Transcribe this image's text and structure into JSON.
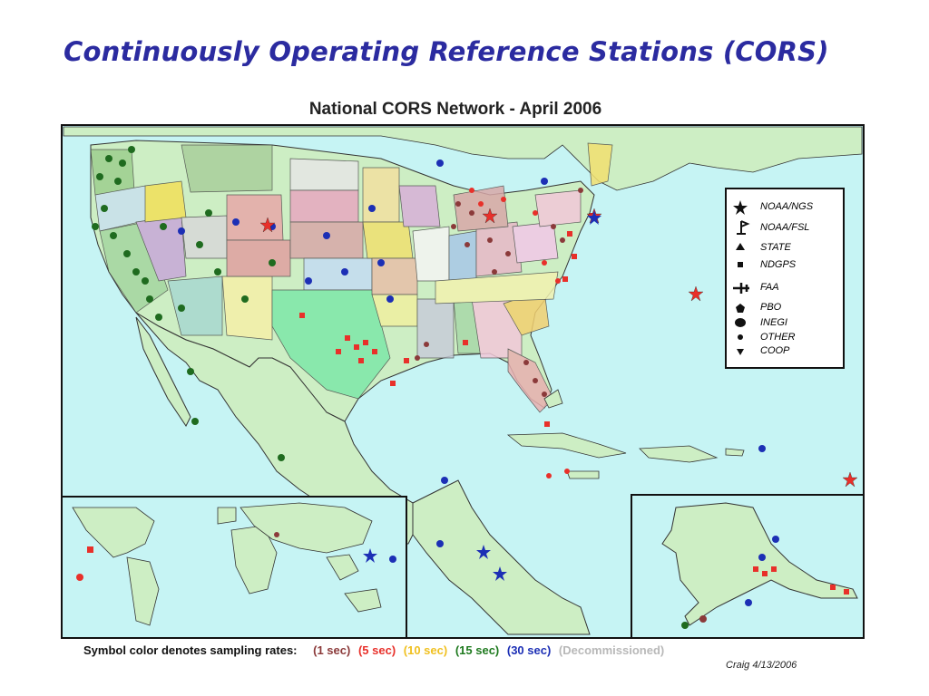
{
  "slide": {
    "title": "Continuously Operating Reference Stations (CORS)"
  },
  "map": {
    "title": "National CORS Network - April 2006",
    "colors": {
      "water": "#c6f4f4",
      "land": "#cdeec4",
      "border": "#111111"
    },
    "legend": [
      {
        "label": "NOAA/NGS",
        "icon": "star-icon"
      },
      {
        "label": "NOAA/FSL",
        "icon": "flag-icon"
      },
      {
        "label": "STATE",
        "icon": "triangle-icon"
      },
      {
        "label": "NDGPS",
        "icon": "square-icon"
      },
      {
        "label": "FAA",
        "icon": "plane-icon"
      },
      {
        "label": "PBO",
        "icon": "pentagon-icon"
      },
      {
        "label": "INEGI",
        "icon": "ellipse-icon"
      },
      {
        "label": "OTHER",
        "icon": "dot-icon"
      },
      {
        "label": "COOP",
        "icon": "down-triangle-icon"
      }
    ],
    "caption": {
      "prefix": "Symbol color denotes sampling rates:",
      "rates": [
        {
          "label": "(1 sec)",
          "color": "#8b3a3a"
        },
        {
          "label": "(5 sec)",
          "color": "#e8302a"
        },
        {
          "label": "(10 sec)",
          "color": "#f0c020"
        },
        {
          "label": "(15 sec)",
          "color": "#1f7a1f"
        },
        {
          "label": "(30 sec)",
          "color": "#1c2fb5"
        },
        {
          "label": "(Decommissioned)",
          "color": "#b8b8b8"
        }
      ]
    },
    "credit": "Craig 4/13/2006"
  }
}
